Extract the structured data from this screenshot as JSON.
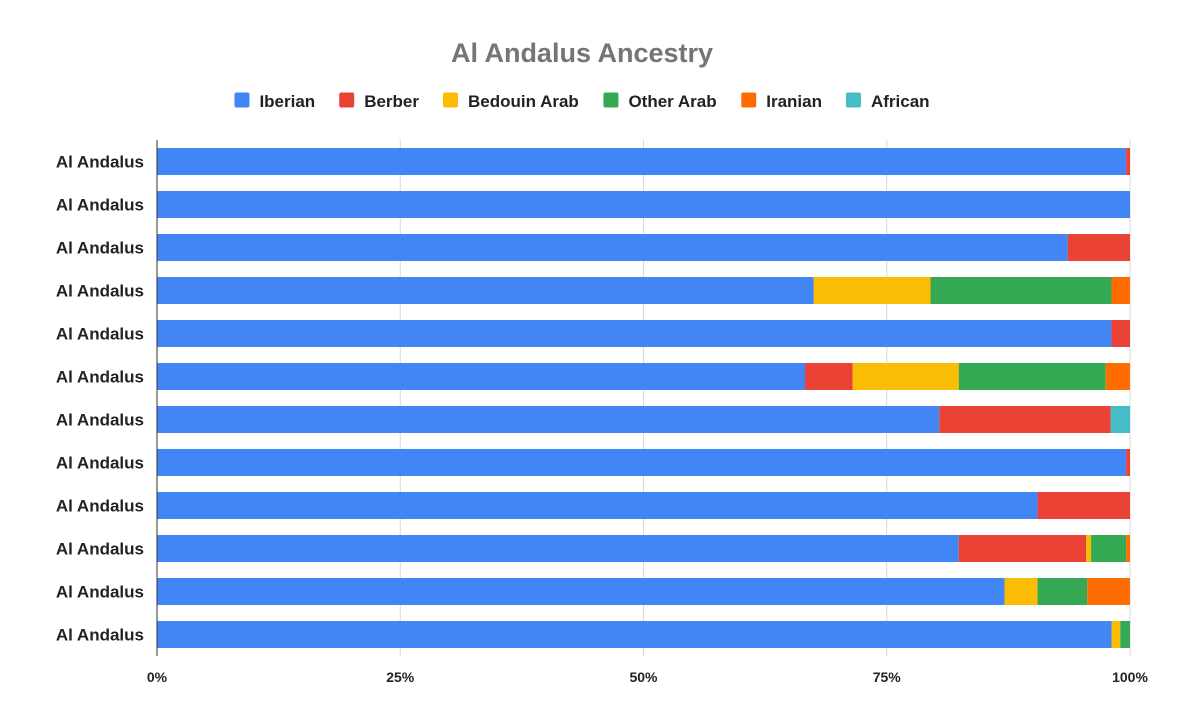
{
  "chart_data": {
    "type": "bar",
    "orientation": "horizontal",
    "stacked": "percent",
    "title": "Al Andalus Ancestry",
    "categories": [
      "Al Andalus",
      "Al Andalus",
      "Al Andalus",
      "Al Andalus",
      "Al Andalus",
      "Al Andalus",
      "Al Andalus",
      "Al Andalus",
      "Al Andalus",
      "Al Andalus",
      "Al Andalus",
      "Al Andalus"
    ],
    "series": [
      {
        "name": "Iberian",
        "color": "#4285f4",
        "values": [
          99.6,
          100,
          93.6,
          67.5,
          98.1,
          66.6,
          80.4,
          99.6,
          90.5,
          82.4,
          87.1,
          98.1
        ]
      },
      {
        "name": "Berber",
        "color": "#ea4335",
        "values": [
          0.4,
          0,
          6.4,
          0,
          1.9,
          4.9,
          17.6,
          0.4,
          9.5,
          13.1,
          0,
          0
        ]
      },
      {
        "name": "Bedouin Arab",
        "color": "#fbbc04",
        "values": [
          0,
          0,
          0,
          12.0,
          0,
          10.9,
          0,
          0,
          0,
          0.5,
          3.4,
          0.9
        ]
      },
      {
        "name": "Other Arab",
        "color": "#34a853",
        "values": [
          0,
          0,
          0,
          18.6,
          0,
          15.1,
          0,
          0,
          0,
          3.6,
          5.1,
          1.0
        ]
      },
      {
        "name": "Iranian",
        "color": "#ff6d01",
        "values": [
          0,
          0,
          0,
          1.9,
          0,
          2.5,
          0,
          0,
          0,
          0.4,
          4.4,
          0
        ]
      },
      {
        "name": "African",
        "color": "#46bdc6",
        "values": [
          0,
          0,
          0,
          0,
          0,
          0,
          2.0,
          0,
          0,
          0,
          0,
          0
        ]
      }
    ],
    "xlim": [
      0,
      100
    ],
    "x_ticks": [
      "0%",
      "25%",
      "50%",
      "75%",
      "100%"
    ],
    "grid": true,
    "legend_position": "top"
  }
}
